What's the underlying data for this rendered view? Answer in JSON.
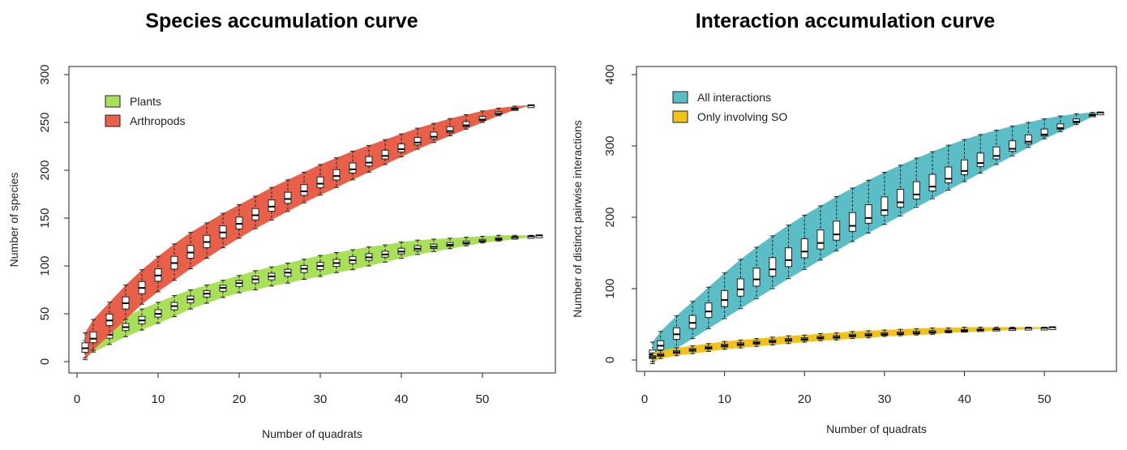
{
  "chart_data": [
    {
      "type": "box-accumulation",
      "title": "Species accumulation curve",
      "xlabel": "Number of quadrats",
      "ylabel": "Number of species",
      "xlim": [
        0,
        58
      ],
      "ylim": [
        0,
        300
      ],
      "xticks": [
        "0",
        "10",
        "20",
        "30",
        "40",
        "50"
      ],
      "yticks": [
        "0",
        "50",
        "100",
        "150",
        "200",
        "250",
        "300"
      ],
      "legend_position": "top-left",
      "series": [
        {
          "name": "Plants",
          "color": "#a8e05a",
          "x": [
            1,
            2,
            4,
            6,
            8,
            10,
            12,
            14,
            16,
            18,
            20,
            22,
            24,
            26,
            28,
            30,
            32,
            34,
            36,
            38,
            40,
            42,
            44,
            46,
            48,
            50,
            52,
            54,
            56,
            57
          ],
          "median": [
            13,
            19,
            28,
            36,
            43,
            50,
            58,
            65,
            71,
            77,
            82,
            86,
            89,
            93,
            97,
            100,
            103,
            106,
            109,
            112,
            115,
            118,
            120,
            122,
            124,
            126,
            128,
            130,
            131,
            132
          ],
          "lower": [
            4,
            10,
            18,
            26,
            33,
            40,
            47,
            55,
            61,
            67,
            72,
            75,
            79,
            82,
            86,
            89,
            93,
            96,
            100,
            104,
            108,
            112,
            115,
            118,
            121,
            124,
            126,
            128,
            130,
            132
          ],
          "upper": [
            22,
            28,
            39,
            47,
            55,
            62,
            69,
            75,
            80,
            85,
            90,
            95,
            99,
            103,
            107,
            111,
            114,
            117,
            120,
            122,
            125,
            127,
            128,
            129,
            130,
            131,
            132,
            132,
            132,
            132
          ]
        },
        {
          "name": "Arthropods",
          "color": "#e8604a",
          "x": [
            1,
            2,
            4,
            6,
            8,
            10,
            12,
            14,
            16,
            18,
            20,
            22,
            24,
            26,
            28,
            30,
            32,
            34,
            36,
            38,
            40,
            42,
            44,
            46,
            48,
            50,
            52,
            54,
            56
          ],
          "median": [
            14,
            24,
            43,
            61,
            77,
            90,
            103,
            114,
            125,
            135,
            144,
            153,
            162,
            170,
            178,
            186,
            194,
            201,
            208,
            215,
            222,
            229,
            235,
            241,
            247,
            253,
            259,
            264,
            268
          ],
          "lower": [
            2,
            12,
            28,
            44,
            60,
            73,
            85,
            97,
            108,
            119,
            129,
            139,
            148,
            157,
            166,
            174,
            182,
            190,
            198,
            206,
            214,
            222,
            229,
            236,
            243,
            250,
            257,
            263,
            268
          ],
          "upper": [
            30,
            44,
            62,
            80,
            96,
            110,
            123,
            135,
            145,
            155,
            164,
            173,
            182,
            190,
            198,
            206,
            213,
            220,
            226,
            232,
            238,
            244,
            249,
            254,
            258,
            262,
            265,
            267,
            268
          ]
        }
      ]
    },
    {
      "type": "box-accumulation",
      "title": "Interaction accumulation curve",
      "xlabel": "Number of  quadrats",
      "ylabel": "Number of distinct pairwise interactions",
      "xlim": [
        0,
        58
      ],
      "ylim": [
        0,
        400
      ],
      "xticks": [
        "0",
        "10",
        "20",
        "30",
        "40",
        "50"
      ],
      "yticks": [
        "0",
        "100",
        "200",
        "300",
        "400"
      ],
      "legend_position": "top-left",
      "series": [
        {
          "name": "All interactions",
          "color": "#5bbdc6",
          "x": [
            1,
            2,
            4,
            6,
            8,
            10,
            12,
            14,
            16,
            18,
            20,
            22,
            24,
            26,
            28,
            30,
            32,
            34,
            36,
            38,
            40,
            42,
            44,
            46,
            48,
            50,
            52,
            54,
            56,
            57
          ],
          "median": [
            8,
            20,
            36,
            52,
            68,
            84,
            99,
            113,
            127,
            140,
            152,
            164,
            176,
            188,
            199,
            210,
            221,
            232,
            243,
            254,
            265,
            276,
            286,
            296,
            306,
            316,
            325,
            334,
            343,
            347
          ],
          "lower": [
            -5,
            4,
            16,
            30,
            44,
            58,
            72,
            86,
            100,
            114,
            127,
            140,
            153,
            166,
            178,
            190,
            202,
            214,
            226,
            238,
            250,
            262,
            274,
            286,
            298,
            310,
            320,
            330,
            341,
            347
          ],
          "upper": [
            25,
            40,
            62,
            82,
            102,
            122,
            141,
            158,
            174,
            189,
            203,
            216,
            229,
            241,
            252,
            263,
            273,
            283,
            292,
            301,
            309,
            316,
            322,
            328,
            333,
            338,
            342,
            345,
            347,
            347
          ]
        },
        {
          "name": "Only involving SO",
          "color": "#f2c21c",
          "x": [
            1,
            2,
            4,
            6,
            8,
            10,
            12,
            14,
            16,
            18,
            20,
            22,
            24,
            26,
            28,
            30,
            32,
            34,
            36,
            38,
            40,
            42,
            44,
            46,
            48,
            50,
            51
          ],
          "median": [
            4,
            7,
            11,
            14,
            17,
            20,
            22,
            24,
            26,
            28,
            29,
            31,
            32,
            34,
            35,
            36,
            37,
            38,
            39,
            40,
            41,
            42,
            43,
            44,
            45,
            45,
            46
          ],
          "lower": [
            -2,
            2,
            6,
            9,
            12,
            15,
            17,
            19,
            21,
            23,
            25,
            27,
            28,
            30,
            31,
            33,
            34,
            35,
            36,
            38,
            39,
            40,
            41,
            42,
            43,
            44,
            46
          ],
          "upper": [
            10,
            13,
            17,
            20,
            23,
            26,
            28,
            30,
            32,
            34,
            35,
            37,
            38,
            40,
            41,
            42,
            43,
            44,
            45,
            45,
            46,
            46,
            46,
            46,
            46,
            46,
            46
          ]
        }
      ]
    }
  ]
}
